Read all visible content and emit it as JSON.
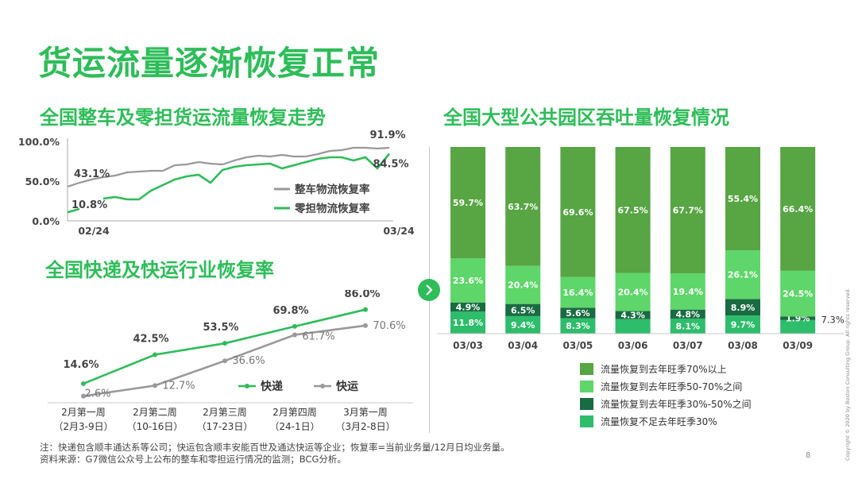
{
  "title": "货运流量逐渐恢复正常",
  "page_number": "8",
  "copyright": "Copyright © 2020 by Boston Consulting Group. All rights reserved.",
  "footnote": "注：快递包含顺丰通达系等公司；快运包含顺丰安能百世及通达快运等企业；恢复率=当前业务量/12月日均业务量。",
  "source": "资料来源：G7微信公众号上公布的整车和零担运行情况的监测；BCG分析。",
  "colors": {
    "green": "#2ebd59",
    "gray": "#999999",
    "bar_top": "#57a543",
    "bar_second": "#5ed66a",
    "bar_third": "#196b41",
    "bar_bottom": "#2ebd6b"
  },
  "chart_data": [
    {
      "type": "line",
      "title": "全国整车及零担货运流量恢复走势",
      "y_ticks": [
        "100.0%",
        "50.0%",
        "0.0%"
      ],
      "ylim": [
        0,
        100
      ],
      "x_tick_labels": [
        "02/24",
        "03/24"
      ],
      "series": [
        {
          "name": "整车物流恢复率",
          "color": "#999999",
          "start_label": "43.1%",
          "end_label": "91.9%",
          "values": [
            43.1,
            48,
            52,
            55,
            57,
            61,
            62,
            63,
            63,
            70,
            71,
            74,
            72,
            71,
            76,
            80,
            82,
            81,
            83,
            81,
            81,
            84,
            88,
            89,
            92,
            92,
            91,
            92
          ]
        },
        {
          "name": "零担物流恢复率",
          "color": "#2ebd59",
          "start_label": "10.8%",
          "end_label": "84.5%",
          "values": [
            10.8,
            15,
            null,
            28,
            30,
            27,
            27,
            38,
            45,
            52,
            56,
            58,
            48,
            64,
            68,
            70,
            71,
            72,
            66,
            70,
            74,
            78,
            80,
            80,
            76,
            80,
            66,
            84.5
          ]
        }
      ]
    },
    {
      "type": "line",
      "title": "全国快递及快运行业恢复率",
      "categories": [
        {
          "line1": "2月第一周",
          "line2": "（2月3-9日）"
        },
        {
          "line1": "2月第二周",
          "line2": "（10-16日）"
        },
        {
          "line1": "2月第三周",
          "line2": "（17-23日）"
        },
        {
          "line1": "2月第四周",
          "line2": "（24-1日）"
        },
        {
          "line1": "3月第一周",
          "line2": "（3月2-8日）"
        }
      ],
      "ylim": [
        0,
        100
      ],
      "series": [
        {
          "name": "快递",
          "color": "#2ebd59",
          "values": [
            14.6,
            42.5,
            53.5,
            69.8,
            86.0
          ],
          "labels": [
            "14.6%",
            "42.5%",
            "53.5%",
            "69.8%",
            "86.0%"
          ]
        },
        {
          "name": "快运",
          "color": "#999999",
          "values": [
            2.6,
            12.7,
            36.6,
            61.7,
            70.6
          ],
          "labels": [
            "2.6%",
            "12.7%",
            "36.6%",
            "61.7%",
            "70.6%"
          ]
        }
      ]
    },
    {
      "type": "bar",
      "stacked": true,
      "title": "全国大型公共园区吞吐量恢复情况",
      "categories": [
        "03/03",
        "03/04",
        "03/05",
        "03/06",
        "03/07",
        "03/08",
        "03/09"
      ],
      "ylim": [
        0,
        100
      ],
      "series": [
        {
          "name": "流量恢复不足去年旺季30%",
          "color": "#2ebd6b",
          "values": [
            11.8,
            9.4,
            8.3,
            7.8,
            8.1,
            9.7,
            7.3
          ],
          "labels": [
            "11.8%",
            "9.4%",
            "8.3%",
            "7.8%",
            "8.1%",
            "9.7%",
            "7.3%"
          ]
        },
        {
          "name": "流量恢复到去年旺季30%-50%之间",
          "color": "#196b41",
          "values": [
            4.9,
            6.5,
            5.6,
            4.3,
            4.8,
            8.9,
            1.9
          ],
          "labels": [
            "4.9%",
            "6.5%",
            "5.6%",
            "4.3%",
            "4.8%",
            "8.9%",
            "1.9%"
          ]
        },
        {
          "name": "流量恢复到去年旺季50-70%之间",
          "color": "#5ed66a",
          "values": [
            23.6,
            20.4,
            16.4,
            20.4,
            19.4,
            26.1,
            24.5
          ],
          "labels": [
            "23.6%",
            "20.4%",
            "16.4%",
            "20.4%",
            "19.4%",
            "26.1%",
            "24.5%"
          ]
        },
        {
          "name": "流量恢复到去年旺季70%以上",
          "color": "#57a543",
          "values": [
            59.7,
            63.7,
            69.6,
            67.5,
            67.7,
            55.4,
            66.4
          ],
          "labels": [
            "59.7%",
            "63.7%",
            "69.6%",
            "67.5%",
            "67.7%",
            "55.4%",
            "66.4%"
          ]
        }
      ],
      "legend_order": [
        "流量恢复到去年旺季70%以上",
        "流量恢复到去年旺季50-70%之间",
        "流量恢复到去年旺季30%-50%之间",
        "流量恢复不足去年旺季30%"
      ]
    }
  ]
}
